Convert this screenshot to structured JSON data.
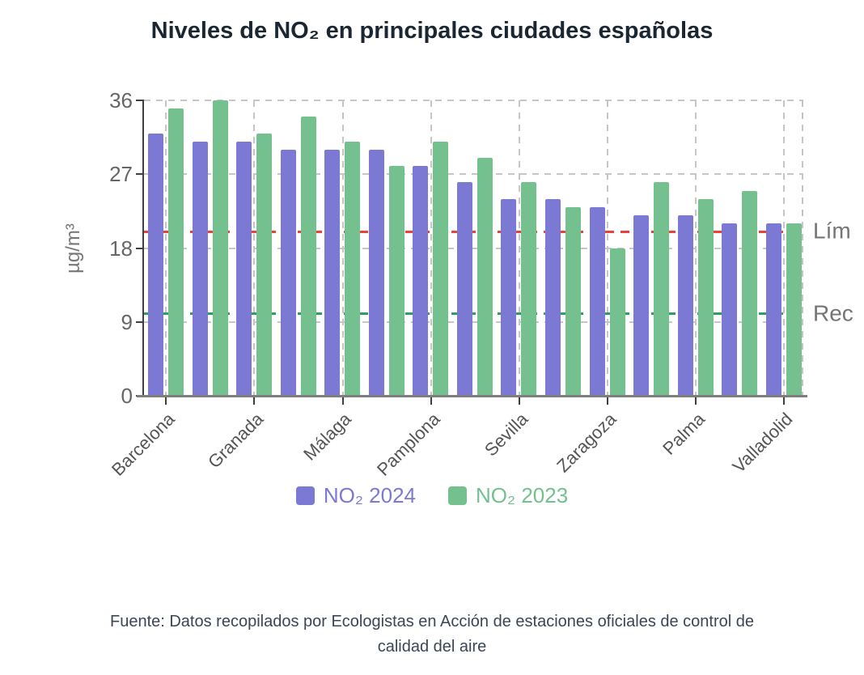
{
  "title": "Niveles de NO₂ en principales ciudades españolas",
  "chart_data": {
    "type": "bar",
    "categories": [
      "Barcelona",
      "",
      "Granada",
      "",
      "Málaga",
      "",
      "Pamplona",
      "",
      "Sevilla",
      "",
      "Zaragoza",
      "",
      "Palma",
      "",
      "Valladolid"
    ],
    "series": [
      {
        "name": "NO₂ 2024",
        "color": "#7B79D4",
        "values": [
          32,
          31,
          31,
          30,
          30,
          30,
          28,
          26,
          24,
          24,
          23,
          22,
          22,
          21,
          21
        ]
      },
      {
        "name": "NO₂ 2023",
        "color": "#74C08F",
        "values": [
          35,
          36,
          32,
          34,
          31,
          28,
          31,
          29,
          26,
          23,
          18,
          26,
          24,
          25,
          21
        ]
      }
    ],
    "ylabel": "µg/m³",
    "yticks": [
      0,
      9,
      18,
      27,
      36
    ],
    "ylim": [
      0,
      36
    ],
    "grid": true,
    "legend_position": "bottom",
    "reference_lines": [
      {
        "value": 20,
        "color": "#EF4035",
        "label": "Lím"
      },
      {
        "value": 10,
        "color": "#2F9E5A",
        "label": "Rec"
      }
    ]
  },
  "footer": {
    "lines": [
      "Fuente: Datos recopilados por Ecologistas en Acción de estaciones oficiales de control de",
      "calidad del aire"
    ]
  }
}
